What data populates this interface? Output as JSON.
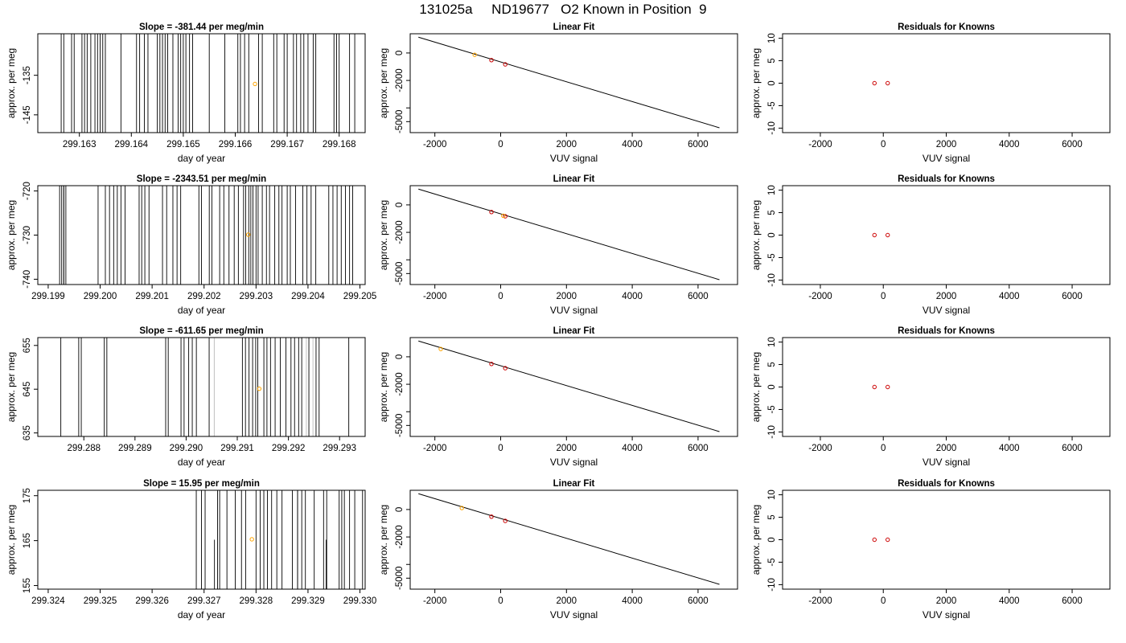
{
  "figure": {
    "title": "131025a     ND19677   O2 Known in Position  9"
  },
  "colors": {
    "line": "#000000",
    "orange": "#ffa500",
    "red": "#cc0000",
    "gray": "#c0c0c0"
  },
  "chart_data": [
    {
      "row": 0,
      "panel": "slope",
      "type": "line",
      "title": "Slope =  -381.44  per meg/min",
      "xlabel": "day of year",
      "ylabel": "approx. per meg",
      "xlim": [
        299.1622,
        299.1685
      ],
      "ylim": [
        -149.5,
        -124.5
      ],
      "xticks": [
        299.163,
        299.164,
        299.165,
        299.166,
        299.167,
        299.168
      ],
      "xtick_labels": [
        "299.163",
        "299.164",
        "299.165",
        "299.166",
        "299.167",
        "299.168"
      ],
      "yticks": [
        -145,
        -135
      ],
      "ytick_labels": [
        "-145",
        "-135"
      ],
      "line_x": [
        299.16265,
        299.1627,
        299.16285,
        299.1629,
        299.16305,
        299.1631,
        299.16315,
        299.16322,
        299.1633,
        299.16335,
        299.1634,
        299.16345,
        299.1635,
        299.1648,
        299.1638,
        299.1641,
        299.16416,
        299.16425,
        299.16432,
        299.1645,
        299.16455,
        299.1646,
        299.16465,
        299.1647,
        299.1649,
        299.16495,
        299.165,
        299.16505,
        299.16512,
        299.16518,
        299.1655,
        299.1658,
        299.16605,
        299.1661,
        299.16618,
        299.16626,
        299.16645,
        299.16652,
        299.16674,
        299.1668,
        299.16694,
        299.167,
        299.16712,
        299.16718,
        299.16726,
        299.16732,
        299.1674,
        299.1675,
        299.16755,
        299.1679,
        299.16795,
        299.168,
        299.1682,
        299.1683
      ],
      "point": {
        "x": 299.16638,
        "y": -137.2,
        "color": "orange"
      }
    },
    {
      "row": 0,
      "panel": "fit",
      "type": "line+scatter",
      "title": "Linear Fit",
      "xlabel": "VUV signal",
      "ylabel": "approx. per meg",
      "xlim": [
        -2750,
        7200
      ],
      "ylim": [
        -5800,
        1400
      ],
      "xticks": [
        -2000,
        0,
        2000,
        4000,
        6000
      ],
      "xtick_labels": [
        "-2000",
        "0",
        "2000",
        "4000",
        "6000"
      ],
      "yticks": [
        -5000,
        -4000,
        -2000,
        0
      ],
      "ytick_labels": [
        "-5000",
        "",
        "-2000",
        "0"
      ],
      "fit_line": [
        [
          -2500,
          1150
        ],
        [
          6650,
          -5450
        ]
      ],
      "knowns": [
        [
          -280,
          -520
        ],
        [
          140,
          -830
        ]
      ],
      "sample": {
        "x": -790,
        "y": -130
      }
    },
    {
      "row": 0,
      "panel": "residual",
      "type": "scatter",
      "title": "Residuals for Knowns",
      "xlabel": "VUV signal",
      "ylabel": "approx. per meg",
      "xlim": [
        -3200,
        7200
      ],
      "ylim": [
        -11,
        11
      ],
      "xticks": [
        -2000,
        0,
        2000,
        4000,
        6000
      ],
      "xtick_labels": [
        "-2000",
        "0",
        "2000",
        "4000",
        "6000"
      ],
      "yticks": [
        -10,
        -5,
        0,
        5,
        10
      ],
      "ytick_labels": [
        "-10",
        "-5",
        "0",
        "5",
        "10"
      ],
      "knowns": [
        [
          -280,
          0
        ],
        [
          140,
          0
        ]
      ]
    },
    {
      "row": 1,
      "panel": "slope",
      "type": "line",
      "title": "Slope =  -2343.51  per meg/min",
      "xlabel": "day of year",
      "ylabel": "approx. per meg",
      "xlim": [
        299.1988,
        299.2051
      ],
      "ylim": [
        -741.2,
        -718.8
      ],
      "xticks": [
        299.199,
        299.2,
        299.201,
        299.202,
        299.203,
        299.204,
        299.205
      ],
      "xtick_labels": [
        "299.199",
        "299.200",
        "299.201",
        "299.202",
        "299.203",
        "299.204",
        "299.205"
      ],
      "yticks": [
        -740,
        -730,
        -720
      ],
      "ytick_labels": [
        "-740",
        "-730",
        "-720"
      ],
      "line_x": [
        299.19922,
        299.19926,
        299.1993,
        299.19934,
        299.1993,
        299.19996,
        299.2001,
        299.20018,
        299.20026,
        299.20033,
        299.2004,
        299.20048,
        299.20075,
        299.2008,
        299.20086,
        299.20094,
        299.2012,
        299.20128,
        299.2014,
        299.20148,
        299.20155,
        299.2019,
        299.20195,
        299.2021,
        299.20215,
        299.2023,
        299.20238,
        299.20248,
        299.20258,
        299.20266,
        299.20276,
        299.2028,
        299.20286,
        299.2029,
        299.20294,
        299.203,
        299.20304,
        299.20312,
        299.2032,
        299.20326,
        299.20336,
        299.20344,
        299.2035,
        299.2036,
        299.20366,
        299.20376,
        299.2039,
        299.20398,
        299.20406,
        299.20415,
        299.2044,
        299.20448,
        299.20456,
        299.20464,
        299.20472,
        299.2048,
        299.20486
      ],
      "point": {
        "x": 299.20285,
        "y": -729.9,
        "color": "orange"
      }
    },
    {
      "row": 1,
      "panel": "fit",
      "type": "line+scatter",
      "title": "Linear Fit",
      "xlabel": "VUV signal",
      "ylabel": "approx. per meg",
      "xlim": [
        -2750,
        7200
      ],
      "ylim": [
        -5800,
        1400
      ],
      "xticks": [
        -2000,
        0,
        2000,
        4000,
        6000
      ],
      "xtick_labels": [
        "-2000",
        "0",
        "2000",
        "4000",
        "6000"
      ],
      "yticks": [
        -5000,
        -4000,
        -2000,
        0
      ],
      "ytick_labels": [
        "-5000",
        "",
        "-2000",
        "0"
      ],
      "fit_line": [
        [
          -2500,
          1150
        ],
        [
          6650,
          -5450
        ]
      ],
      "knowns": [
        [
          -280,
          -520
        ],
        [
          140,
          -830
        ]
      ],
      "sample": {
        "x": 80,
        "y": -790
      }
    },
    {
      "row": 1,
      "panel": "residual",
      "type": "scatter",
      "title": "Residuals for Knowns",
      "xlabel": "VUV signal",
      "ylabel": "approx. per meg",
      "xlim": [
        -3200,
        7200
      ],
      "ylim": [
        -11,
        11
      ],
      "xticks": [
        -2000,
        0,
        2000,
        4000,
        6000
      ],
      "xtick_labels": [
        "-2000",
        "0",
        "2000",
        "4000",
        "6000"
      ],
      "yticks": [
        -10,
        -5,
        0,
        5,
        10
      ],
      "ytick_labels": [
        "-10",
        "-5",
        "0",
        "5",
        "10"
      ],
      "knowns": [
        [
          -280,
          0
        ],
        [
          140,
          0
        ]
      ]
    },
    {
      "row": 2,
      "panel": "slope",
      "type": "line",
      "title": "Slope =  -611.65  per meg/min",
      "xlabel": "day of year",
      "ylabel": "approx. per meg",
      "xlim": [
        299.2871,
        299.2935
      ],
      "ylim": [
        634.2,
        656.8
      ],
      "xticks": [
        299.288,
        299.289,
        299.29,
        299.291,
        299.292,
        299.293
      ],
      "xtick_labels": [
        "299.288",
        "299.289",
        "299.290",
        "299.291",
        "299.292",
        "299.293"
      ],
      "yticks": [
        635,
        645,
        655
      ],
      "ytick_labels": [
        "635",
        "645",
        "655"
      ],
      "line_x": [
        299.28755,
        299.2879,
        299.28795,
        299.2884,
        299.28845,
        299.2896,
        299.28965,
        299.2899,
        299.28996,
        299.29005,
        299.29012,
        299.2902,
        299.29045,
        299.2911,
        299.29116,
        299.29123,
        299.2913,
        299.29136,
        299.2914,
        299.29152,
        299.29158,
        299.29165,
        299.29174,
        299.29184,
        299.29195,
        299.29205,
        299.29212,
        299.2922,
        299.29226,
        299.2924,
        299.29254,
        299.2926,
        299.29318
      ],
      "gray_x": [
        299.29055,
        299.29235,
        299.29248
      ],
      "point": {
        "x": 299.29143,
        "y": 645.1,
        "color": "orange"
      }
    },
    {
      "row": 2,
      "panel": "fit",
      "type": "line+scatter",
      "title": "Linear Fit",
      "xlabel": "VUV signal",
      "ylabel": "approx. per meg",
      "xlim": [
        -2750,
        7200
      ],
      "ylim": [
        -5800,
        1400
      ],
      "xticks": [
        -2000,
        0,
        2000,
        4000,
        6000
      ],
      "xtick_labels": [
        "-2000",
        "0",
        "2000",
        "4000",
        "6000"
      ],
      "yticks": [
        -5000,
        -4000,
        -2000,
        0
      ],
      "ytick_labels": [
        "-5000",
        "",
        "-2000",
        "0"
      ],
      "fit_line": [
        [
          -2500,
          1150
        ],
        [
          6650,
          -5450
        ]
      ],
      "knowns": [
        [
          -280,
          -520
        ],
        [
          140,
          -830
        ]
      ],
      "sample": {
        "x": -1820,
        "y": 570
      }
    },
    {
      "row": 2,
      "panel": "residual",
      "type": "scatter",
      "title": "Residuals for Knowns",
      "xlabel": "VUV signal",
      "ylabel": "approx. per meg",
      "xlim": [
        -3200,
        7200
      ],
      "ylim": [
        -11,
        11
      ],
      "xticks": [
        -2000,
        0,
        2000,
        4000,
        6000
      ],
      "xtick_labels": [
        "-2000",
        "0",
        "2000",
        "4000",
        "6000"
      ],
      "yticks": [
        -10,
        -5,
        0,
        5,
        10
      ],
      "ytick_labels": [
        "-10",
        "-5",
        "0",
        "5",
        "10"
      ],
      "knowns": [
        [
          -280,
          0
        ],
        [
          140,
          0
        ]
      ]
    },
    {
      "row": 3,
      "panel": "slope",
      "type": "line",
      "title": "Slope =  15.95  per meg/min",
      "xlabel": "day of year",
      "ylabel": "approx. per meg",
      "xlim": [
        299.3238,
        299.3301
      ],
      "ylim": [
        154.2,
        176.2
      ],
      "xticks": [
        299.324,
        299.325,
        299.326,
        299.327,
        299.328,
        299.329,
        299.33
      ],
      "xtick_labels": [
        "299.324",
        "299.325",
        "299.326",
        "299.327",
        "299.328",
        "299.329",
        "299.330"
      ],
      "yticks": [
        155,
        165,
        175
      ],
      "ytick_labels": [
        "155",
        "165",
        "175"
      ],
      "line_x": [
        299.32685,
        299.32695,
        299.32702,
        299.32726,
        299.3273,
        299.32744,
        299.3276,
        299.32772,
        299.3278,
        299.328,
        299.32808,
        299.32815,
        299.32822,
        299.3283,
        299.3284,
        299.3285,
        299.3287,
        299.3288,
        299.32888,
        299.32895,
        299.32912,
        299.3293,
        299.32936,
        299.3296,
        299.32965,
        299.3297,
        299.3298,
        299.3299,
        299.33005,
        299.3288
      ],
      "short_x": [
        299.3272,
        299.32935
      ],
      "point": {
        "x": 299.32792,
        "y": 165.3,
        "color": "orange"
      }
    },
    {
      "row": 3,
      "panel": "fit",
      "type": "line+scatter",
      "title": "Linear Fit",
      "xlabel": "VUV signal",
      "ylabel": "approx. per meg",
      "xlim": [
        -2750,
        7200
      ],
      "ylim": [
        -5800,
        1400
      ],
      "xticks": [
        -2000,
        0,
        2000,
        4000,
        6000
      ],
      "xtick_labels": [
        "-2000",
        "0",
        "2000",
        "4000",
        "6000"
      ],
      "yticks": [
        -5000,
        -4000,
        -2000,
        0
      ],
      "ytick_labels": [
        "-5000",
        "",
        "-2000",
        "0"
      ],
      "fit_line": [
        [
          -2500,
          1150
        ],
        [
          6650,
          -5450
        ]
      ],
      "knowns": [
        [
          -280,
          -520
        ],
        [
          140,
          -830
        ]
      ],
      "sample": {
        "x": -1180,
        "y": 110
      }
    },
    {
      "row": 3,
      "panel": "residual",
      "type": "scatter",
      "title": "Residuals for Knowns",
      "xlabel": "VUV signal",
      "ylabel": "approx. per meg",
      "xlim": [
        -3200,
        7200
      ],
      "ylim": [
        -11,
        11
      ],
      "xticks": [
        -2000,
        0,
        2000,
        4000,
        6000
      ],
      "xtick_labels": [
        "-2000",
        "0",
        "2000",
        "4000",
        "6000"
      ],
      "yticks": [
        -10,
        -5,
        0,
        5,
        10
      ],
      "ytick_labels": [
        "-10",
        "-5",
        "0",
        "5",
        "10"
      ],
      "knowns": [
        [
          -280,
          0
        ],
        [
          140,
          0
        ]
      ]
    }
  ]
}
